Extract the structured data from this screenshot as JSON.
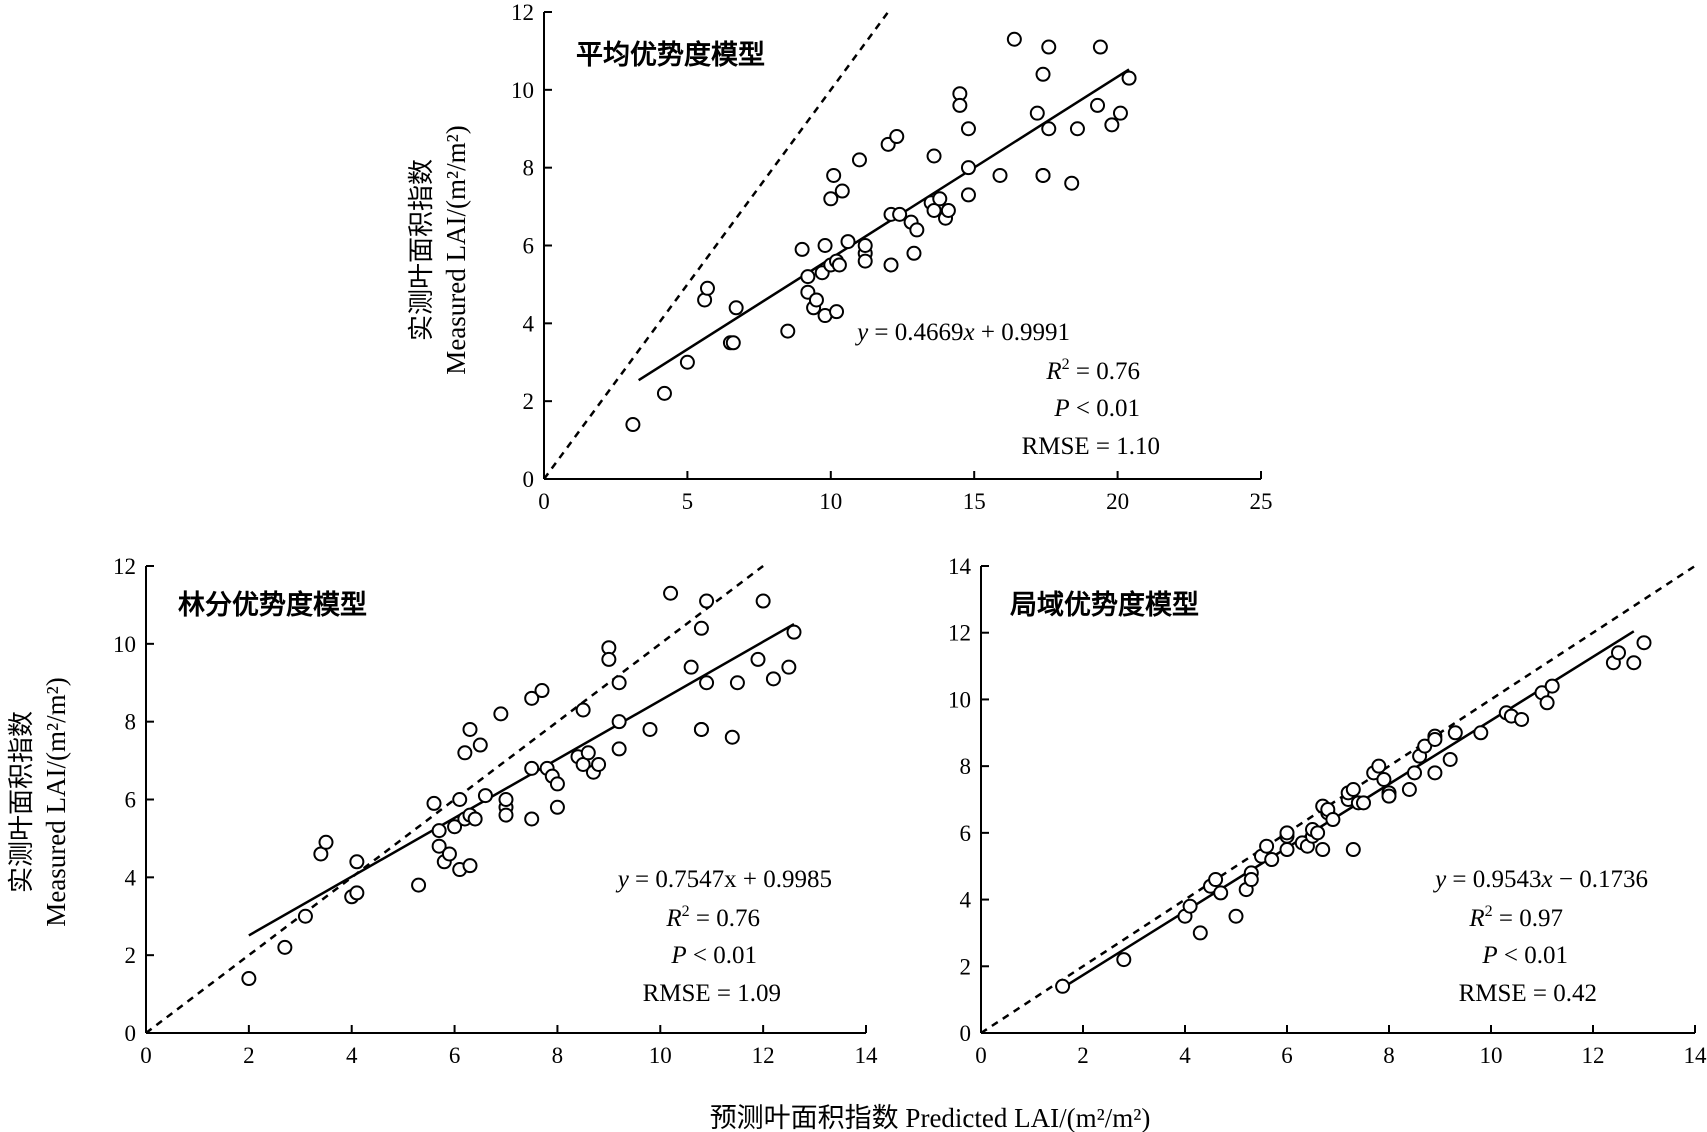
{
  "figure": {
    "ylabel_zh": "实测叶面积指数",
    "ylabel_en": "Measured LAI/(m²/m²)",
    "xlabel": "预测叶面积指数 Predicted  LAI/(m²/m²)"
  },
  "chart_data": [
    {
      "type": "scatter",
      "title": "平均优势度模型",
      "xlim": [
        0,
        25
      ],
      "ylim": [
        0,
        12
      ],
      "xticks": [
        0,
        5,
        10,
        15,
        20,
        25
      ],
      "yticks": [
        0,
        2,
        4,
        6,
        8,
        10,
        12
      ],
      "fit": {
        "slope": 0.4669,
        "intercept": 0.9991,
        "x_range": [
          3.3,
          20.4
        ]
      },
      "reference_line": "1:1 dashed",
      "stats": {
        "eq": "y = 0.4669x + 0.9991",
        "r2": "R2 = 0.76",
        "p": "P < 0.01",
        "rmse": "RMSE = 1.10"
      },
      "points": [
        [
          3.1,
          1.4
        ],
        [
          4.2,
          2.2
        ],
        [
          5.0,
          3.0
        ],
        [
          5.6,
          4.6
        ],
        [
          5.7,
          4.9
        ],
        [
          6.5,
          3.5
        ],
        [
          6.6,
          3.5
        ],
        [
          6.7,
          4.4
        ],
        [
          8.5,
          3.8
        ],
        [
          9.0,
          5.9
        ],
        [
          9.2,
          5.2
        ],
        [
          9.2,
          4.8
        ],
        [
          9.4,
          4.4
        ],
        [
          9.5,
          4.6
        ],
        [
          9.7,
          5.3
        ],
        [
          9.8,
          6.0
        ],
        [
          9.8,
          4.2
        ],
        [
          10.0,
          5.5
        ],
        [
          10.0,
          7.2
        ],
        [
          10.1,
          7.8
        ],
        [
          10.2,
          5.6
        ],
        [
          10.2,
          4.3
        ],
        [
          10.3,
          5.5
        ],
        [
          10.4,
          7.4
        ],
        [
          10.6,
          6.1
        ],
        [
          11.0,
          8.2
        ],
        [
          11.2,
          5.8
        ],
        [
          11.2,
          6.0
        ],
        [
          11.2,
          5.6
        ],
        [
          12.0,
          8.6
        ],
        [
          12.1,
          6.8
        ],
        [
          12.1,
          5.5
        ],
        [
          12.3,
          8.8
        ],
        [
          12.4,
          6.8
        ],
        [
          12.8,
          6.6
        ],
        [
          12.9,
          5.8
        ],
        [
          13.0,
          6.4
        ],
        [
          13.5,
          7.1
        ],
        [
          13.6,
          8.3
        ],
        [
          13.6,
          6.9
        ],
        [
          13.8,
          7.2
        ],
        [
          14.0,
          6.7
        ],
        [
          14.1,
          6.9
        ],
        [
          14.5,
          9.9
        ],
        [
          14.5,
          9.6
        ],
        [
          14.8,
          9.0
        ],
        [
          14.8,
          8.0
        ],
        [
          14.8,
          7.3
        ],
        [
          15.9,
          7.8
        ],
        [
          16.4,
          11.3
        ],
        [
          17.2,
          9.4
        ],
        [
          17.4,
          10.4
        ],
        [
          17.4,
          7.8
        ],
        [
          17.4,
          7.8
        ],
        [
          17.6,
          11.1
        ],
        [
          17.6,
          9.0
        ],
        [
          18.4,
          7.6
        ],
        [
          18.6,
          9.0
        ],
        [
          19.3,
          9.6
        ],
        [
          19.4,
          11.1
        ],
        [
          19.8,
          9.1
        ],
        [
          20.1,
          9.4
        ],
        [
          20.4,
          10.3
        ]
      ]
    },
    {
      "type": "scatter",
      "title": "林分优势度模型",
      "xlim": [
        0,
        14
      ],
      "ylim": [
        0,
        12
      ],
      "xticks": [
        0,
        2,
        4,
        6,
        8,
        10,
        12,
        14
      ],
      "yticks": [
        0,
        2,
        4,
        6,
        8,
        10,
        12
      ],
      "fit": {
        "slope": 0.7547,
        "intercept": 0.9985,
        "x_range": [
          2.0,
          12.6
        ]
      },
      "reference_line": "1:1 dashed",
      "stats": {
        "eq": "y = 0.7547x + 0.9985",
        "r2": "R2 = 0.76",
        "p": "P < 0.01",
        "rmse": "RMSE = 1.09"
      },
      "points": [
        [
          2.0,
          1.4
        ],
        [
          2.7,
          2.2
        ],
        [
          3.1,
          3.0
        ],
        [
          3.4,
          4.6
        ],
        [
          3.5,
          4.9
        ],
        [
          4.0,
          3.5
        ],
        [
          4.1,
          3.6
        ],
        [
          4.1,
          4.4
        ],
        [
          5.3,
          3.8
        ],
        [
          5.6,
          5.9
        ],
        [
          5.7,
          5.2
        ],
        [
          5.7,
          4.8
        ],
        [
          5.8,
          4.4
        ],
        [
          5.9,
          4.6
        ],
        [
          6.0,
          5.3
        ],
        [
          6.1,
          6.0
        ],
        [
          6.1,
          4.2
        ],
        [
          6.2,
          5.5
        ],
        [
          6.2,
          7.2
        ],
        [
          6.3,
          7.8
        ],
        [
          6.3,
          5.6
        ],
        [
          6.3,
          4.3
        ],
        [
          6.4,
          5.5
        ],
        [
          6.5,
          7.4
        ],
        [
          6.6,
          6.1
        ],
        [
          6.9,
          8.2
        ],
        [
          7.0,
          5.8
        ],
        [
          7.0,
          6.0
        ],
        [
          7.0,
          5.6
        ],
        [
          7.5,
          8.6
        ],
        [
          7.5,
          6.8
        ],
        [
          7.5,
          5.5
        ],
        [
          7.7,
          8.8
        ],
        [
          7.8,
          6.8
        ],
        [
          7.9,
          6.6
        ],
        [
          8.0,
          5.8
        ],
        [
          8.0,
          6.4
        ],
        [
          8.4,
          7.1
        ],
        [
          8.5,
          8.3
        ],
        [
          8.5,
          6.9
        ],
        [
          8.6,
          7.2
        ],
        [
          8.7,
          6.7
        ],
        [
          8.8,
          6.9
        ],
        [
          9.0,
          9.9
        ],
        [
          9.0,
          9.6
        ],
        [
          9.2,
          9.0
        ],
        [
          9.2,
          8.0
        ],
        [
          9.2,
          7.3
        ],
        [
          9.8,
          7.8
        ],
        [
          10.2,
          11.3
        ],
        [
          10.6,
          9.4
        ],
        [
          10.8,
          10.4
        ],
        [
          10.8,
          7.8
        ],
        [
          10.8,
          7.8
        ],
        [
          10.9,
          11.1
        ],
        [
          10.9,
          9.0
        ],
        [
          11.4,
          7.6
        ],
        [
          11.5,
          9.0
        ],
        [
          11.9,
          9.6
        ],
        [
          12.0,
          11.1
        ],
        [
          12.2,
          9.1
        ],
        [
          12.5,
          9.4
        ],
        [
          12.6,
          10.3
        ]
      ]
    },
    {
      "type": "scatter",
      "title": "局域优势度模型",
      "xlim": [
        0,
        14
      ],
      "ylim": [
        0,
        14
      ],
      "xticks": [
        0,
        2,
        4,
        6,
        8,
        10,
        12,
        14
      ],
      "yticks": [
        0,
        2,
        4,
        6,
        8,
        10,
        12,
        14
      ],
      "fit": {
        "slope": 0.9543,
        "intercept": -0.1736,
        "x_range": [
          1.6,
          12.8
        ]
      },
      "reference_line": "1:1 dashed",
      "stats": {
        "eq": "y = 0.9543x − 0.1736",
        "r2": "R2 = 0.97",
        "p": "P < 0.01",
        "rmse": "RMSE = 0.42"
      },
      "points": [
        [
          1.6,
          1.4
        ],
        [
          2.8,
          2.2
        ],
        [
          4.0,
          3.5
        ],
        [
          4.1,
          3.8
        ],
        [
          4.3,
          3.0
        ],
        [
          4.5,
          4.4
        ],
        [
          4.6,
          4.6
        ],
        [
          4.7,
          4.2
        ],
        [
          5.0,
          3.5
        ],
        [
          5.2,
          4.3
        ],
        [
          5.3,
          4.8
        ],
        [
          5.3,
          4.6
        ],
        [
          5.5,
          5.3
        ],
        [
          5.6,
          5.6
        ],
        [
          5.7,
          5.2
        ],
        [
          6.0,
          5.5
        ],
        [
          6.0,
          5.9
        ],
        [
          6.0,
          6.0
        ],
        [
          6.3,
          5.7
        ],
        [
          6.4,
          5.6
        ],
        [
          6.5,
          5.9
        ],
        [
          6.5,
          6.1
        ],
        [
          6.6,
          6.0
        ],
        [
          6.7,
          6.8
        ],
        [
          6.7,
          5.5
        ],
        [
          6.8,
          6.6
        ],
        [
          6.8,
          6.7
        ],
        [
          6.9,
          6.4
        ],
        [
          7.2,
          7.0
        ],
        [
          7.2,
          7.2
        ],
        [
          7.3,
          5.5
        ],
        [
          7.3,
          7.3
        ],
        [
          7.4,
          6.9
        ],
        [
          7.5,
          6.9
        ],
        [
          7.7,
          7.8
        ],
        [
          7.8,
          8.0
        ],
        [
          7.9,
          7.6
        ],
        [
          8.0,
          7.2
        ],
        [
          8.0,
          7.1
        ],
        [
          8.4,
          7.3
        ],
        [
          8.5,
          7.8
        ],
        [
          8.6,
          8.3
        ],
        [
          8.7,
          8.6
        ],
        [
          8.9,
          8.9
        ],
        [
          8.9,
          8.8
        ],
        [
          8.9,
          7.8
        ],
        [
          9.2,
          8.2
        ],
        [
          9.3,
          9.0
        ],
        [
          9.8,
          9.0
        ],
        [
          10.3,
          9.6
        ],
        [
          10.4,
          9.5
        ],
        [
          10.6,
          9.4
        ],
        [
          11.0,
          10.2
        ],
        [
          11.1,
          9.9
        ],
        [
          11.2,
          10.4
        ],
        [
          12.4,
          11.1
        ],
        [
          12.5,
          11.4
        ],
        [
          12.8,
          11.1
        ],
        [
          13.0,
          11.7
        ]
      ]
    }
  ]
}
